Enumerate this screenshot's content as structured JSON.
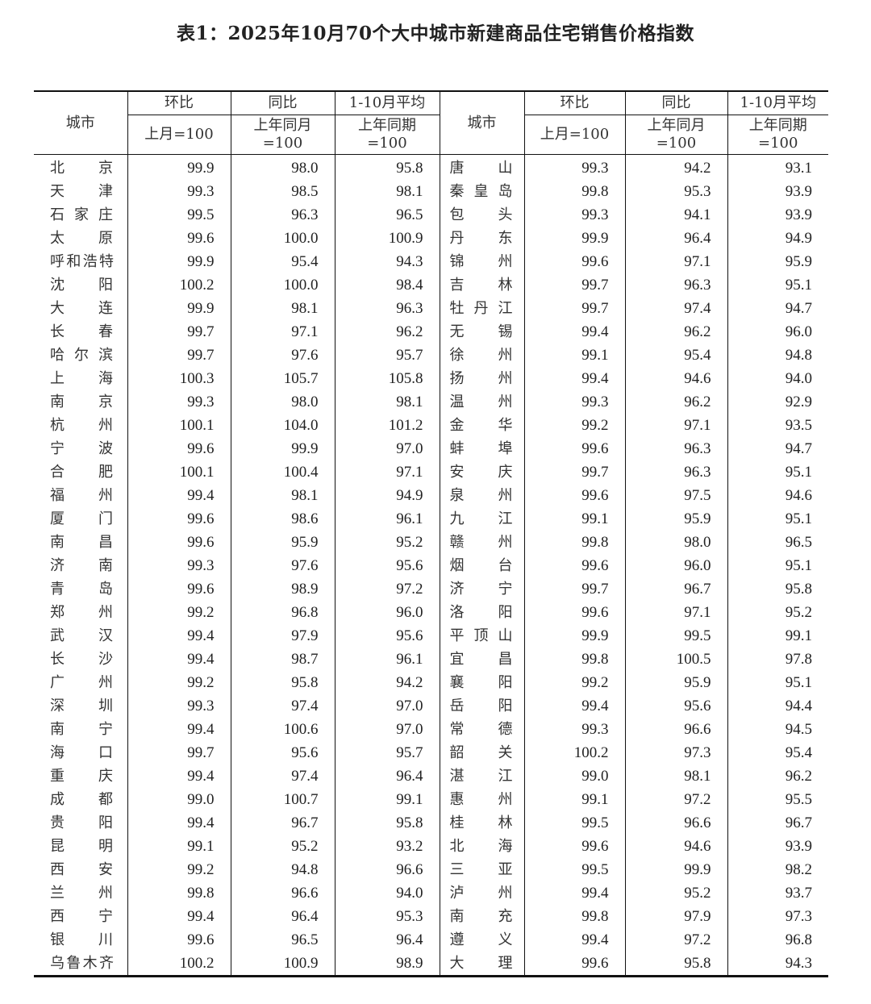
{
  "title": "表1：2025年10月70个大中城市新建商品住宅销售价格指数",
  "header": {
    "city": "城市",
    "mom": "环比",
    "yoy": "同比",
    "avg": "1-10月平均",
    "mom_base": "上月=100",
    "yoy_base": "上年同月=100",
    "avg_base": "上年同期=100"
  },
  "left": [
    [
      "北京",
      "99.9",
      "98.0",
      "95.8"
    ],
    [
      "天津",
      "99.3",
      "98.5",
      "98.1"
    ],
    [
      "石家庄",
      "99.5",
      "96.3",
      "96.5"
    ],
    [
      "太原",
      "99.6",
      "100.0",
      "100.9"
    ],
    [
      "呼和浩特",
      "99.9",
      "95.4",
      "94.3"
    ],
    [
      "沈阳",
      "100.2",
      "100.0",
      "98.4"
    ],
    [
      "大连",
      "99.9",
      "98.1",
      "96.3"
    ],
    [
      "长春",
      "99.7",
      "97.1",
      "96.2"
    ],
    [
      "哈尔滨",
      "99.7",
      "97.6",
      "95.7"
    ],
    [
      "上海",
      "100.3",
      "105.7",
      "105.8"
    ],
    [
      "南京",
      "99.3",
      "98.0",
      "98.1"
    ],
    [
      "杭州",
      "100.1",
      "104.0",
      "101.2"
    ],
    [
      "宁波",
      "99.6",
      "99.9",
      "97.0"
    ],
    [
      "合肥",
      "100.1",
      "100.4",
      "97.1"
    ],
    [
      "福州",
      "99.4",
      "98.1",
      "94.9"
    ],
    [
      "厦门",
      "99.6",
      "98.6",
      "96.1"
    ],
    [
      "南昌",
      "99.6",
      "95.9",
      "95.2"
    ],
    [
      "济南",
      "99.3",
      "97.6",
      "95.6"
    ],
    [
      "青岛",
      "99.6",
      "98.9",
      "97.2"
    ],
    [
      "郑州",
      "99.2",
      "96.8",
      "96.0"
    ],
    [
      "武汉",
      "99.4",
      "97.9",
      "95.6"
    ],
    [
      "长沙",
      "99.4",
      "98.7",
      "96.1"
    ],
    [
      "广州",
      "99.2",
      "95.8",
      "94.2"
    ],
    [
      "深圳",
      "99.3",
      "97.4",
      "97.0"
    ],
    [
      "南宁",
      "99.4",
      "100.6",
      "97.0"
    ],
    [
      "海口",
      "99.7",
      "95.6",
      "95.7"
    ],
    [
      "重庆",
      "99.4",
      "97.4",
      "96.4"
    ],
    [
      "成都",
      "99.0",
      "100.7",
      "99.1"
    ],
    [
      "贵阳",
      "99.4",
      "96.7",
      "95.8"
    ],
    [
      "昆明",
      "99.1",
      "95.2",
      "93.2"
    ],
    [
      "西安",
      "99.2",
      "94.8",
      "96.6"
    ],
    [
      "兰州",
      "99.8",
      "96.6",
      "94.0"
    ],
    [
      "西宁",
      "99.4",
      "96.4",
      "95.3"
    ],
    [
      "银川",
      "99.6",
      "96.5",
      "96.4"
    ],
    [
      "乌鲁木齐",
      "100.2",
      "100.9",
      "98.9"
    ]
  ],
  "right": [
    [
      "唐山",
      "99.3",
      "94.2",
      "93.1"
    ],
    [
      "秦皇岛",
      "99.8",
      "95.3",
      "93.9"
    ],
    [
      "包头",
      "99.3",
      "94.1",
      "93.9"
    ],
    [
      "丹东",
      "99.9",
      "96.4",
      "94.9"
    ],
    [
      "锦州",
      "99.6",
      "97.1",
      "95.9"
    ],
    [
      "吉林",
      "99.7",
      "96.3",
      "95.1"
    ],
    [
      "牡丹江",
      "99.7",
      "97.4",
      "94.7"
    ],
    [
      "无锡",
      "99.4",
      "96.2",
      "96.0"
    ],
    [
      "徐州",
      "99.1",
      "95.4",
      "94.8"
    ],
    [
      "扬州",
      "99.4",
      "94.6",
      "94.0"
    ],
    [
      "温州",
      "99.3",
      "96.2",
      "92.9"
    ],
    [
      "金华",
      "99.2",
      "97.1",
      "93.5"
    ],
    [
      "蚌埠",
      "99.6",
      "96.3",
      "94.7"
    ],
    [
      "安庆",
      "99.7",
      "96.3",
      "95.1"
    ],
    [
      "泉州",
      "99.6",
      "97.5",
      "94.6"
    ],
    [
      "九江",
      "99.1",
      "95.9",
      "95.1"
    ],
    [
      "赣州",
      "99.8",
      "98.0",
      "96.5"
    ],
    [
      "烟台",
      "99.6",
      "96.0",
      "95.1"
    ],
    [
      "济宁",
      "99.7",
      "96.7",
      "95.8"
    ],
    [
      "洛阳",
      "99.6",
      "97.1",
      "95.2"
    ],
    [
      "平顶山",
      "99.9",
      "99.5",
      "99.1"
    ],
    [
      "宜昌",
      "99.8",
      "100.5",
      "97.8"
    ],
    [
      "襄阳",
      "99.2",
      "95.9",
      "95.1"
    ],
    [
      "岳阳",
      "99.4",
      "95.6",
      "94.4"
    ],
    [
      "常德",
      "99.3",
      "96.6",
      "94.5"
    ],
    [
      "韶关",
      "100.2",
      "97.3",
      "95.4"
    ],
    [
      "湛江",
      "99.0",
      "98.1",
      "96.2"
    ],
    [
      "惠州",
      "99.1",
      "97.2",
      "95.5"
    ],
    [
      "桂林",
      "99.5",
      "96.6",
      "96.7"
    ],
    [
      "北海",
      "99.6",
      "94.6",
      "93.9"
    ],
    [
      "三亚",
      "99.5",
      "99.9",
      "98.2"
    ],
    [
      "泸州",
      "99.4",
      "95.2",
      "93.7"
    ],
    [
      "南充",
      "99.8",
      "97.9",
      "97.3"
    ],
    [
      "遵义",
      "99.4",
      "97.2",
      "96.8"
    ],
    [
      "大理",
      "99.6",
      "95.8",
      "94.3"
    ]
  ]
}
